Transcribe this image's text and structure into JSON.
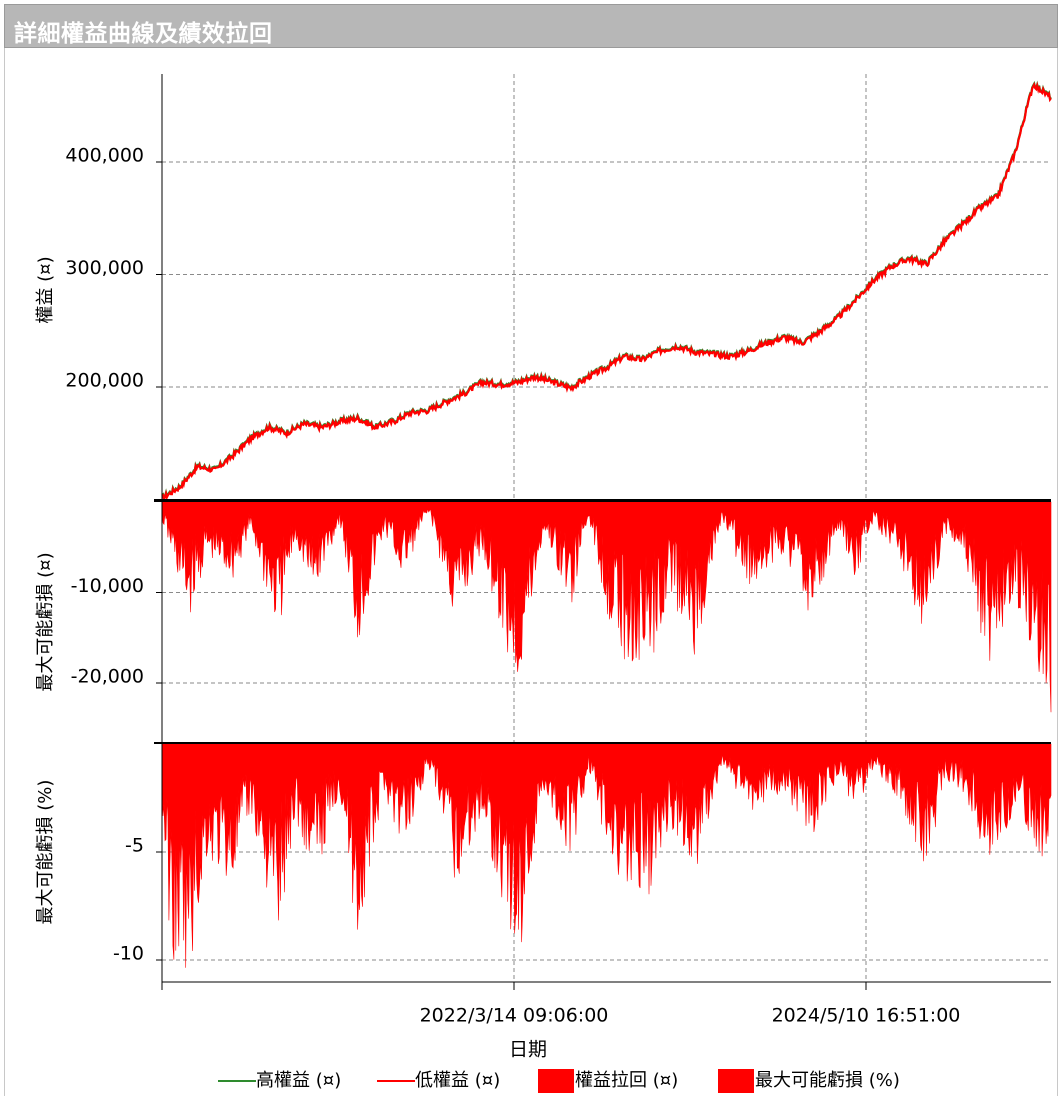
{
  "window": {
    "title": "詳細權益曲線及績效拉回"
  },
  "colors": {
    "high_equity": "#2e8b2e",
    "low_equity": "#ff0000",
    "drawdown_fill": "#ff0000",
    "grid": "#888888",
    "title_bg": "#b7b7b7"
  },
  "chart_data": [
    {
      "type": "line",
      "ylabel": "權益 (¤)",
      "y_ticks": [
        200000,
        300000,
        400000
      ],
      "y_tick_labels": [
        "200,000",
        "300,000",
        "400,000"
      ],
      "grid": true,
      "series": [
        {
          "name": "高權益 (¤)",
          "color": "#2e8b2e"
        },
        {
          "name": "低權益 (¤)",
          "color": "#ff0000"
        }
      ],
      "x": [
        0,
        0.02,
        0.04,
        0.06,
        0.08,
        0.1,
        0.12,
        0.14,
        0.16,
        0.18,
        0.2,
        0.22,
        0.24,
        0.26,
        0.28,
        0.3,
        0.32,
        0.34,
        0.36,
        0.38,
        0.4,
        0.42,
        0.44,
        0.46,
        0.48,
        0.5,
        0.52,
        0.54,
        0.56,
        0.58,
        0.6,
        0.62,
        0.64,
        0.66,
        0.68,
        0.7,
        0.72,
        0.74,
        0.76,
        0.78,
        0.8,
        0.82,
        0.84,
        0.86,
        0.88,
        0.9,
        0.92,
        0.94,
        0.96,
        0.98,
        1
      ],
      "values": [
        102000,
        112000,
        130000,
        127000,
        140000,
        155000,
        165000,
        160000,
        168000,
        165000,
        170000,
        173000,
        165000,
        170000,
        178000,
        180000,
        188000,
        195000,
        205000,
        203000,
        205000,
        210000,
        205000,
        200000,
        210000,
        218000,
        228000,
        225000,
        233000,
        237000,
        232000,
        230000,
        228000,
        233000,
        240000,
        245000,
        240000,
        250000,
        262000,
        278000,
        295000,
        308000,
        315000,
        310000,
        330000,
        345000,
        360000,
        370000,
        410000,
        470000,
        458000
      ]
    },
    {
      "type": "area",
      "ylabel": "最大可能虧損 (¤)",
      "y_ticks": [
        -10000,
        -20000
      ],
      "y_tick_labels": [
        "-10,000",
        "-20,000"
      ],
      "ylim": [
        -27000,
        0
      ],
      "grid": true,
      "series": [
        {
          "name": "權益拉回 (¤)",
          "color": "#ff0000"
        }
      ],
      "x": [
        0,
        0.03,
        0.05,
        0.08,
        0.1,
        0.13,
        0.15,
        0.17,
        0.2,
        0.22,
        0.25,
        0.27,
        0.3,
        0.33,
        0.36,
        0.4,
        0.43,
        0.46,
        0.48,
        0.5,
        0.52,
        0.55,
        0.57,
        0.6,
        0.63,
        0.66,
        0.7,
        0.73,
        0.76,
        0.78,
        0.8,
        0.83,
        0.86,
        0.88,
        0.9,
        0.93,
        0.96,
        0.98,
        1
      ],
      "values": [
        -2000,
        -12000,
        -6000,
        -8000,
        -3000,
        -14000,
        -4000,
        -10000,
        -2000,
        -15000,
        -3000,
        -8000,
        -1000,
        -13000,
        -5000,
        -20000,
        -3000,
        -11000,
        -1500,
        -11000,
        -16000,
        -17000,
        -9000,
        -16000,
        -2000,
        -9000,
        -5000,
        -12000,
        -3000,
        -8000,
        -2000,
        -6000,
        -14000,
        -3000,
        -5000,
        -17000,
        -10000,
        -15000,
        -25000
      ]
    },
    {
      "type": "area",
      "ylabel": "最大可能虧損 (%)",
      "y_ticks": [
        -5,
        -10
      ],
      "y_tick_labels": [
        "-5",
        "-10"
      ],
      "ylim": [
        -11.5,
        0
      ],
      "grid": true,
      "xlabel": "日期",
      "x_tick_labels": [
        "2022/3/14 09:06:00",
        "2024/5/10 16:51:00"
      ],
      "series": [
        {
          "name": "最大可能虧損 (%)",
          "color": "#ff0000"
        }
      ],
      "x": [
        0,
        0.01,
        0.03,
        0.05,
        0.08,
        0.1,
        0.13,
        0.15,
        0.17,
        0.2,
        0.22,
        0.25,
        0.27,
        0.3,
        0.33,
        0.36,
        0.4,
        0.43,
        0.46,
        0.48,
        0.5,
        0.52,
        0.55,
        0.57,
        0.6,
        0.63,
        0.66,
        0.7,
        0.73,
        0.76,
        0.78,
        0.8,
        0.83,
        0.86,
        0.88,
        0.9,
        0.93,
        0.96,
        0.98,
        1
      ],
      "values": [
        -3,
        -9,
        -10.5,
        -5,
        -6,
        -3,
        -8.5,
        -3,
        -6,
        -2,
        -8.5,
        -2,
        -4.5,
        -1,
        -6,
        -3,
        -9.5,
        -2,
        -5,
        -1,
        -4.5,
        -6,
        -6.5,
        -3.5,
        -5.5,
        -1,
        -3,
        -2,
        -4,
        -1.5,
        -3,
        -1,
        -2.5,
        -5.5,
        -1.5,
        -2,
        -5,
        -3,
        -4.5,
        -5.5
      ]
    }
  ],
  "legend": [
    {
      "label": "高權益 (¤)",
      "kind": "line",
      "color": "#2e8b2e"
    },
    {
      "label": "低權益 (¤)",
      "kind": "line",
      "color": "#ff0000"
    },
    {
      "label": "權益拉回 (¤)",
      "kind": "box",
      "color": "#ff0000"
    },
    {
      "label": "最大可能虧損 (%)",
      "kind": "box",
      "color": "#ff0000"
    }
  ]
}
